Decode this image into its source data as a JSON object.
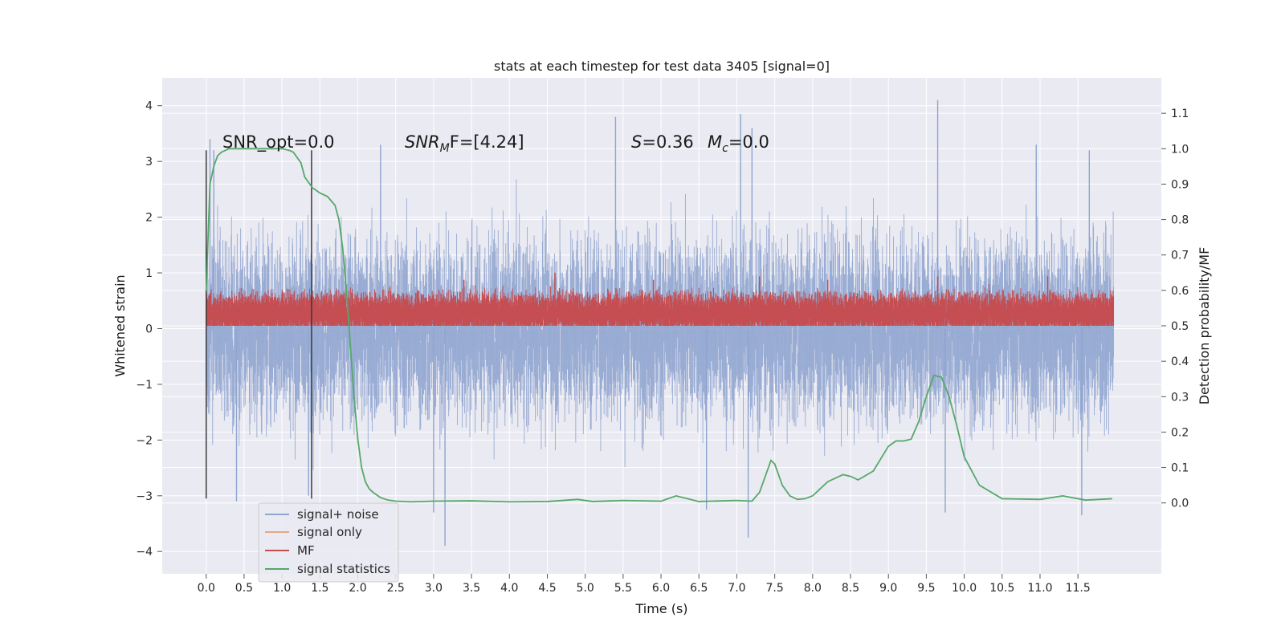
{
  "chart_data": {
    "type": "line",
    "title": "stats at each timestep for test data 3405 [signal=0]",
    "xlabel": "Time (s)",
    "ylabel_left": "Whitened strain",
    "ylabel_right": "Detection probability/MF",
    "xlim": [
      -0.58,
      12.6
    ],
    "ylim_left": [
      -4.4,
      4.5
    ],
    "ylim_right": [
      -0.2,
      1.2
    ],
    "x_ticks": [
      "0.0",
      "0.5",
      "1.0",
      "1.5",
      "2.0",
      "2.5",
      "3.0",
      "3.5",
      "4.0",
      "4.5",
      "5.0",
      "5.5",
      "6.0",
      "6.5",
      "7.0",
      "7.5",
      "8.0",
      "8.5",
      "9.0",
      "9.5",
      "10.0",
      "10.5",
      "11.0",
      "11.5"
    ],
    "y_ticks_left": [
      "4",
      "3",
      "2",
      "1",
      "0",
      "−1",
      "−2",
      "−3",
      "−4"
    ],
    "y_ticks_right": [
      "1.1",
      "1.0",
      "0.9",
      "0.8",
      "0.7",
      "0.6",
      "0.5",
      "0.4",
      "0.3",
      "0.2",
      "0.1",
      "0.0"
    ],
    "vlines": [
      0.0,
      1.39
    ],
    "grid": true,
    "legend_position": "lower-left",
    "annotations": {
      "snr_opt": "SNR_opt=0.0",
      "snr_mf": "SNR",
      "snr_mf_sub": "M",
      "snr_mf_rest": "F=[4.24]",
      "s_label": "S",
      "s_value": "=0.36",
      "mc_label": "M",
      "mc_sub": "c",
      "mc_value": "=0.0"
    },
    "series": [
      {
        "name": "signal+ noise",
        "axis": "left",
        "color": "#8fa4cf",
        "description_values": "noise band roughly within [-2.5, 2.5] with spikes up to 4.1 near 9.65 s",
        "spikes": [
          [
            0.05,
            3.4
          ],
          [
            0.1,
            3.2
          ],
          [
            2.3,
            3.3
          ],
          [
            5.4,
            3.8
          ],
          [
            7.05,
            3.85
          ],
          [
            7.2,
            3.6
          ],
          [
            9.65,
            4.1
          ],
          [
            10.95,
            3.3
          ],
          [
            11.65,
            3.2
          ],
          [
            0.4,
            -3.1
          ],
          [
            1.35,
            -3.0
          ],
          [
            3.15,
            -3.9
          ],
          [
            7.15,
            -3.75
          ],
          [
            9.75,
            -3.3
          ],
          [
            11.55,
            -3.35
          ],
          [
            3.0,
            -3.3
          ],
          [
            6.6,
            -3.25
          ]
        ]
      },
      {
        "name": "signal only",
        "axis": "left",
        "color": "#e8a68a",
        "values_note": "flat at zero"
      },
      {
        "name": "MF",
        "axis": "right",
        "color": "#c44e52",
        "band": [
          0.5,
          0.6
        ],
        "spikes": [
          [
            3.4,
            0.63
          ],
          [
            4.6,
            0.65
          ],
          [
            5.9,
            0.63
          ],
          [
            7.3,
            0.64
          ],
          [
            8.2,
            0.63
          ],
          [
            9.65,
            0.64
          ],
          [
            11.1,
            0.64
          ]
        ]
      },
      {
        "name": "signal statistics",
        "axis": "right",
        "color": "#55a868",
        "x": [
          0.0,
          0.05,
          0.1,
          0.15,
          0.2,
          0.3,
          0.5,
          0.7,
          0.9,
          1.0,
          1.1,
          1.15,
          1.25,
          1.3,
          1.4,
          1.5,
          1.6,
          1.7,
          1.75,
          1.8,
          1.85,
          1.9,
          1.95,
          2.0,
          2.05,
          2.1,
          2.15,
          2.2,
          2.3,
          2.4,
          2.5,
          2.7,
          3.0,
          3.5,
          4.0,
          4.5,
          4.9,
          5.1,
          5.5,
          6.0,
          6.2,
          6.5,
          7.0,
          7.2,
          7.3,
          7.4,
          7.45,
          7.5,
          7.6,
          7.7,
          7.8,
          7.9,
          8.0,
          8.2,
          8.4,
          8.5,
          8.6,
          8.8,
          9.0,
          9.1,
          9.2,
          9.3,
          9.4,
          9.5,
          9.6,
          9.7,
          9.8,
          9.9,
          10.0,
          10.2,
          10.5,
          11.0,
          11.3,
          11.6,
          11.95
        ],
        "y": [
          0.6,
          0.9,
          0.95,
          0.98,
          0.99,
          1.0,
          1.0,
          1.0,
          1.0,
          1.0,
          0.995,
          0.99,
          0.96,
          0.92,
          0.89,
          0.875,
          0.865,
          0.84,
          0.8,
          0.72,
          0.6,
          0.45,
          0.3,
          0.18,
          0.1,
          0.06,
          0.04,
          0.03,
          0.015,
          0.008,
          0.005,
          0.003,
          0.005,
          0.006,
          0.003,
          0.004,
          0.01,
          0.004,
          0.007,
          0.005,
          0.02,
          0.004,
          0.007,
          0.005,
          0.03,
          0.09,
          0.12,
          0.11,
          0.05,
          0.02,
          0.01,
          0.012,
          0.02,
          0.06,
          0.08,
          0.075,
          0.065,
          0.09,
          0.16,
          0.175,
          0.175,
          0.18,
          0.23,
          0.3,
          0.36,
          0.355,
          0.3,
          0.22,
          0.13,
          0.05,
          0.012,
          0.01,
          0.02,
          0.008,
          0.012
        ]
      }
    ]
  }
}
